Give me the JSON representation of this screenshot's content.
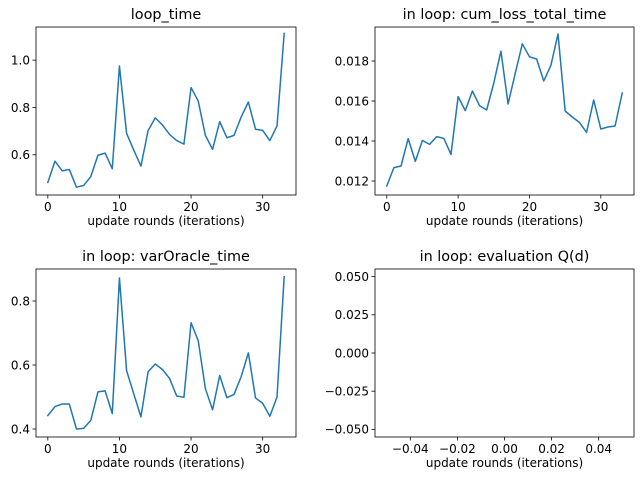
{
  "chart_data": [
    {
      "type": "line",
      "title": "loop_time",
      "xlabel": "update rounds (iterations)",
      "ylabel": "",
      "xlim": [
        -1.65,
        34.65
      ],
      "ylim": [
        0.43,
        1.14
      ],
      "xticks": [
        0,
        10,
        20,
        30
      ],
      "xtick_labels": [
        "0",
        "10",
        "20",
        "30"
      ],
      "yticks": [
        0.6,
        0.8,
        1.0
      ],
      "ytick_labels": [
        "0.6",
        "0.8",
        "1.0"
      ],
      "grid": false,
      "x": [
        0,
        1,
        2,
        3,
        4,
        5,
        6,
        7,
        8,
        9,
        10,
        11,
        12,
        13,
        14,
        15,
        16,
        17,
        18,
        19,
        20,
        21,
        22,
        23,
        24,
        25,
        26,
        27,
        28,
        29,
        30,
        31,
        32,
        33
      ],
      "series": [
        {
          "values": [
            0.483,
            0.573,
            0.532,
            0.538,
            0.463,
            0.47,
            0.508,
            0.598,
            0.607,
            0.541,
            0.975,
            0.69,
            0.62,
            0.552,
            0.702,
            0.756,
            0.726,
            0.686,
            0.66,
            0.645,
            0.884,
            0.827,
            0.682,
            0.623,
            0.74,
            0.672,
            0.682,
            0.76,
            0.823,
            0.708,
            0.703,
            0.66,
            0.722,
            1.113
          ]
        }
      ]
    },
    {
      "type": "line",
      "title": "in loop: cum_loss_total_time",
      "xlabel": "update rounds (iterations)",
      "ylabel": "",
      "xlim": [
        -1.65,
        34.65
      ],
      "ylim": [
        0.0113,
        0.0197
      ],
      "xticks": [
        0,
        10,
        20,
        30
      ],
      "xtick_labels": [
        "0",
        "10",
        "20",
        "30"
      ],
      "yticks": [
        0.012,
        0.014,
        0.016,
        0.018
      ],
      "ytick_labels": [
        "0.012",
        "0.014",
        "0.016",
        "0.018"
      ],
      "grid": false,
      "x": [
        0,
        1,
        2,
        3,
        4,
        5,
        6,
        7,
        8,
        9,
        10,
        11,
        12,
        13,
        14,
        15,
        16,
        17,
        18,
        19,
        20,
        21,
        22,
        23,
        24,
        25,
        26,
        27,
        28,
        29,
        30,
        31,
        32,
        33
      ],
      "series": [
        {
          "values": [
            0.01175,
            0.01267,
            0.01275,
            0.01412,
            0.01298,
            0.01403,
            0.01383,
            0.01422,
            0.01413,
            0.01333,
            0.01622,
            0.01552,
            0.0165,
            0.01577,
            0.01555,
            0.0169,
            0.01849,
            0.01585,
            0.01738,
            0.01886,
            0.01821,
            0.0181,
            0.017,
            0.01778,
            0.01935,
            0.0155,
            0.0152,
            0.01493,
            0.01443,
            0.01605,
            0.0146,
            0.0147,
            0.01475,
            0.0164
          ]
        }
      ]
    },
    {
      "type": "line",
      "title": "in loop: varOracle_time",
      "xlabel": "update rounds (iterations)",
      "ylabel": "",
      "xlim": [
        -1.65,
        34.65
      ],
      "ylim": [
        0.375,
        0.9
      ],
      "xticks": [
        0,
        10,
        20,
        30
      ],
      "xtick_labels": [
        "0",
        "10",
        "20",
        "30"
      ],
      "yticks": [
        0.4,
        0.6,
        0.8
      ],
      "ytick_labels": [
        "0.4",
        "0.6",
        "0.8"
      ],
      "grid": false,
      "x": [
        0,
        1,
        2,
        3,
        4,
        5,
        6,
        7,
        8,
        9,
        10,
        11,
        12,
        13,
        14,
        15,
        16,
        17,
        18,
        19,
        20,
        21,
        22,
        23,
        24,
        25,
        26,
        27,
        28,
        29,
        30,
        31,
        32,
        33
      ],
      "series": [
        {
          "values": [
            0.442,
            0.47,
            0.478,
            0.478,
            0.4,
            0.402,
            0.427,
            0.516,
            0.519,
            0.448,
            0.872,
            0.582,
            0.51,
            0.438,
            0.579,
            0.603,
            0.586,
            0.558,
            0.503,
            0.499,
            0.732,
            0.676,
            0.526,
            0.46,
            0.567,
            0.498,
            0.508,
            0.564,
            0.638,
            0.497,
            0.48,
            0.44,
            0.5,
            0.876
          ]
        }
      ]
    },
    {
      "type": "line",
      "title": "in loop: evaluation Q(d)",
      "xlabel": "update rounds (iterations)",
      "ylabel": "",
      "xlim": [
        -0.055,
        0.055
      ],
      "ylim": [
        -0.055,
        0.055
      ],
      "xticks": [
        -0.04,
        -0.02,
        0.0,
        0.02,
        0.04
      ],
      "xtick_labels": [
        "−0.04",
        "−0.02",
        "0.00",
        "0.02",
        "0.04"
      ],
      "yticks": [
        -0.05,
        -0.025,
        0.0,
        0.025,
        0.05
      ],
      "ytick_labels": [
        "−0.050",
        "−0.025",
        "0.000",
        "0.025",
        "0.050"
      ],
      "grid": false,
      "x": [],
      "series": [
        {
          "values": []
        }
      ]
    }
  ]
}
